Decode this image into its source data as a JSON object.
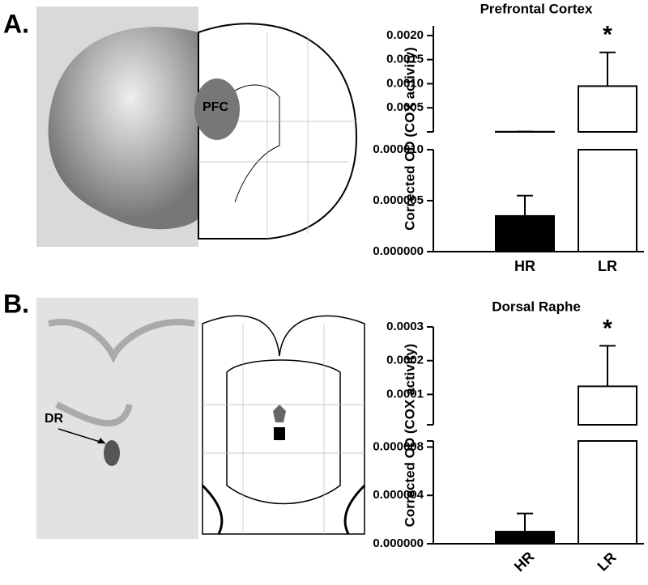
{
  "panels": [
    {
      "label": "A.",
      "annotation": "PFC"
    },
    {
      "label": "B.",
      "annotation": "DR"
    }
  ],
  "chart_data": [
    {
      "type": "broken-bar",
      "title": "Prefrontal Cortex",
      "y_label": "Corrected OD (COX activity)",
      "categories": [
        "HR",
        "LR"
      ],
      "values": [
        3.5e-06,
        0.00095
      ],
      "errors": [
        2e-06,
        0.0007
      ],
      "significance": [
        null,
        "*"
      ],
      "colors": [
        "#000000",
        "#ffffff"
      ],
      "y_segments": [
        {
          "ylim": [
            0,
            1e-05
          ],
          "yticks": [
            {
              "value": 0,
              "label": "0.000000"
            },
            5e-06,
            {
              "value": 1e-05,
              "label": "0.000010"
            }
          ]
        },
        {
          "ylim": [
            0,
            0.0022
          ],
          "yticks": [
            0.0005,
            {
              "value": 0.001,
              "label": "0.0010"
            },
            0.0015,
            {
              "value": 0.002,
              "label": "0.0020"
            }
          ]
        }
      ]
    },
    {
      "type": "broken-bar",
      "title": "Dorsal Raphe",
      "y_label": "Corrected OD (COX activity)",
      "categories": [
        "HR",
        "LR"
      ],
      "values": [
        1e-06,
        0.000124
      ],
      "errors": [
        1.5e-06,
        0.00012
      ],
      "significance": [
        null,
        "*"
      ],
      "colors": [
        "#000000",
        "#ffffff"
      ],
      "rotate_x_labels": true,
      "y_segments": [
        {
          "ylim": [
            0,
            8.5e-06
          ],
          "yticks": [
            {
              "value": 0,
              "label": "0.000000"
            },
            4e-06,
            8e-06
          ]
        },
        {
          "ylim": [
            1e-05,
            0.0003
          ],
          "yticks": [
            0.0001,
            0.0002,
            0.0003
          ]
        }
      ]
    }
  ]
}
